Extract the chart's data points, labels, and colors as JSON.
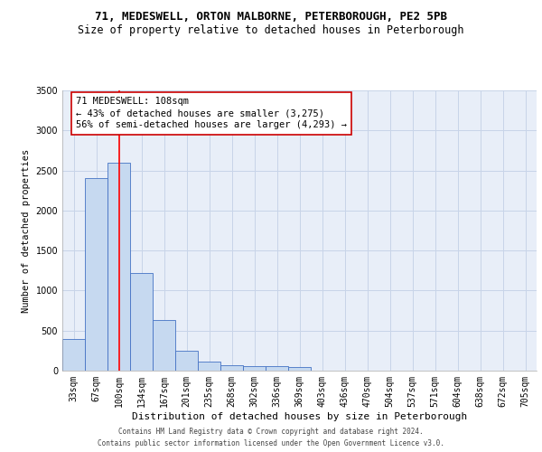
{
  "title1": "71, MEDESWELL, ORTON MALBORNE, PETERBOROUGH, PE2 5PB",
  "title2": "Size of property relative to detached houses in Peterborough",
  "xlabel": "Distribution of detached houses by size in Peterborough",
  "ylabel": "Number of detached properties",
  "footnote1": "Contains HM Land Registry data © Crown copyright and database right 2024.",
  "footnote2": "Contains public sector information licensed under the Open Government Licence v3.0.",
  "bar_labels": [
    "33sqm",
    "67sqm",
    "100sqm",
    "134sqm",
    "167sqm",
    "201sqm",
    "235sqm",
    "268sqm",
    "302sqm",
    "336sqm",
    "369sqm",
    "403sqm",
    "436sqm",
    "470sqm",
    "504sqm",
    "537sqm",
    "571sqm",
    "604sqm",
    "638sqm",
    "672sqm",
    "705sqm"
  ],
  "bar_values": [
    390,
    2400,
    2600,
    1220,
    630,
    250,
    110,
    70,
    60,
    55,
    50,
    0,
    0,
    0,
    0,
    0,
    0,
    0,
    0,
    0,
    0
  ],
  "bar_color": "#c6d9f0",
  "bar_edge_color": "#4472c4",
  "red_line_index": 2,
  "annotation_text": "71 MEDESWELL: 108sqm\n← 43% of detached houses are smaller (3,275)\n56% of semi-detached houses are larger (4,293) →",
  "annotation_box_color": "#ffffff",
  "annotation_box_edge": "#cc0000",
  "ylim": [
    0,
    3500
  ],
  "yticks": [
    0,
    500,
    1000,
    1500,
    2000,
    2500,
    3000,
    3500
  ],
  "grid_color": "#c8d4e8",
  "bg_color": "#e8eef8",
  "title1_fontsize": 9,
  "title2_fontsize": 8.5,
  "xlabel_fontsize": 8,
  "ylabel_fontsize": 7.5,
  "tick_fontsize": 7,
  "annot_fontsize": 7.5,
  "footnote_fontsize": 5.5
}
